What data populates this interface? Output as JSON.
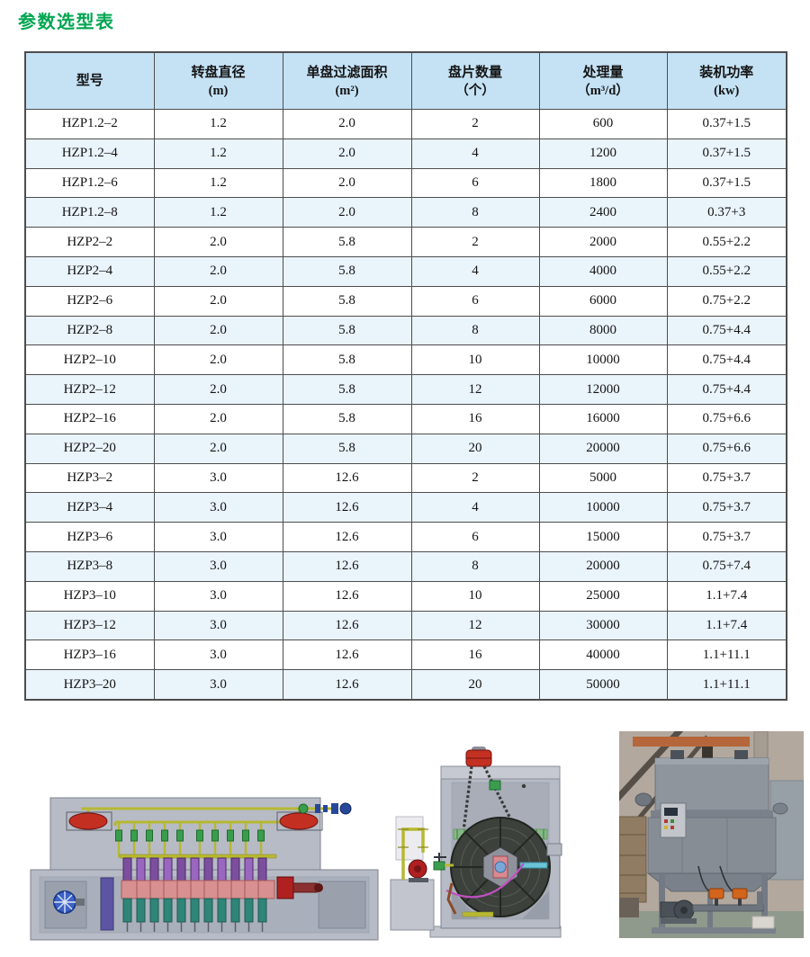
{
  "page": {
    "title": "参数选型表"
  },
  "colors": {
    "title_green": "#00a651",
    "header_bg": "#c5e2f5",
    "row_alt_bg": "#eaf4fb",
    "table_border": "#4d4d4d",
    "text": "#141414"
  },
  "table": {
    "columns": [
      {
        "label": "型号",
        "unit": ""
      },
      {
        "label": "转盘直径",
        "unit": "(m)"
      },
      {
        "label": "单盘过滤面积",
        "unit": "(m²)"
      },
      {
        "label": "盘片数量",
        "unit": "（个）"
      },
      {
        "label": "处理量",
        "unit": "（m³/d）"
      },
      {
        "label": "装机功率",
        "unit": "(kw)"
      }
    ],
    "rows": [
      [
        "HZP1.2–2",
        "1.2",
        "2.0",
        "2",
        "600",
        "0.37+1.5"
      ],
      [
        "HZP1.2–4",
        "1.2",
        "2.0",
        "4",
        "1200",
        "0.37+1.5"
      ],
      [
        "HZP1.2–6",
        "1.2",
        "2.0",
        "6",
        "1800",
        "0.37+1.5"
      ],
      [
        "HZP1.2–8",
        "1.2",
        "2.0",
        "8",
        "2400",
        "0.37+3"
      ],
      [
        "HZP2–2",
        "2.0",
        "5.8",
        "2",
        "2000",
        "0.55+2.2"
      ],
      [
        "HZP2–4",
        "2.0",
        "5.8",
        "4",
        "4000",
        "0.55+2.2"
      ],
      [
        "HZP2–6",
        "2.0",
        "5.8",
        "6",
        "6000",
        "0.75+2.2"
      ],
      [
        "HZP2–8",
        "2.0",
        "5.8",
        "8",
        "8000",
        "0.75+4.4"
      ],
      [
        "HZP2–10",
        "2.0",
        "5.8",
        "10",
        "10000",
        "0.75+4.4"
      ],
      [
        "HZP2–12",
        "2.0",
        "5.8",
        "12",
        "12000",
        "0.75+4.4"
      ],
      [
        "HZP2–16",
        "2.0",
        "5.8",
        "16",
        "16000",
        "0.75+6.6"
      ],
      [
        "HZP2–20",
        "2.0",
        "5.8",
        "20",
        "20000",
        "0.75+6.6"
      ],
      [
        "HZP3–2",
        "3.0",
        "12.6",
        "2",
        "5000",
        "0.75+3.7"
      ],
      [
        "HZP3–4",
        "3.0",
        "12.6",
        "4",
        "10000",
        "0.75+3.7"
      ],
      [
        "HZP3–6",
        "3.0",
        "12.6",
        "6",
        "15000",
        "0.75+3.7"
      ],
      [
        "HZP3–8",
        "3.0",
        "12.6",
        "8",
        "20000",
        "0.75+7.4"
      ],
      [
        "HZP3–10",
        "3.0",
        "12.6",
        "10",
        "25000",
        "1.1+7.4"
      ],
      [
        "HZP3–12",
        "3.0",
        "12.6",
        "12",
        "30000",
        "1.1+7.4"
      ],
      [
        "HZP3–16",
        "3.0",
        "12.6",
        "16",
        "40000",
        "1.1+11.1"
      ],
      [
        "HZP3–20",
        "3.0",
        "12.6",
        "20",
        "50000",
        "1.1+11.1"
      ]
    ]
  },
  "figures": {
    "left": {
      "name": "disc-filter-side-view-diagram"
    },
    "middle": {
      "name": "disc-filter-end-view-diagram"
    },
    "right": {
      "name": "equipment-factory-photo"
    },
    "palette": {
      "pipe_yellow": "#b7b832",
      "valve_green": "#3a9d4e",
      "sprayer_red": "#c33022",
      "disc_purple": "#7b4f9e",
      "disc_pink": "#d89090",
      "disc_teal": "#2f8577",
      "housing_gray": "#b7bbc5",
      "actuator_orange": "#d2641c"
    }
  }
}
